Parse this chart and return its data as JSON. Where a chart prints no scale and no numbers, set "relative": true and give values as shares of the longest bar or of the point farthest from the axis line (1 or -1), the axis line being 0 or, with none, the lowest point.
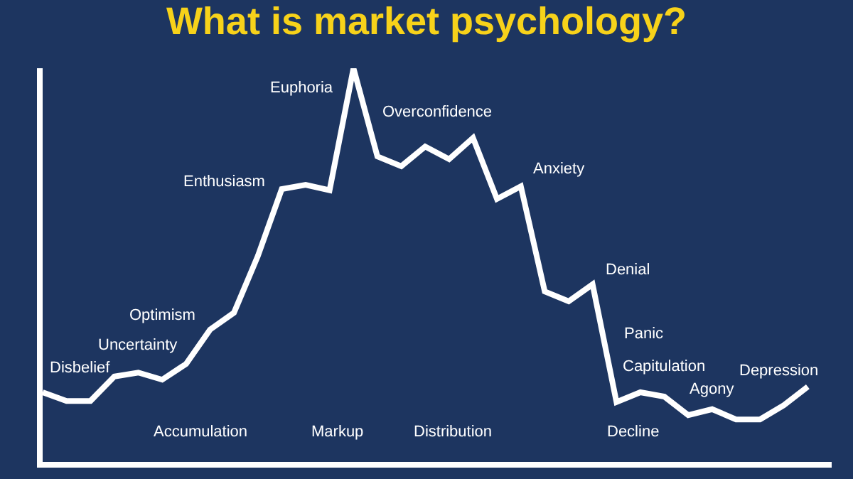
{
  "chart_data": {
    "type": "line",
    "title": "What is market psychology?",
    "relative": true,
    "marker": "none",
    "line_style": "solid",
    "categories": [
      null,
      null,
      null,
      null,
      null,
      null,
      null,
      null,
      null,
      null,
      null,
      null,
      null,
      null,
      null,
      null,
      null,
      null,
      null,
      null,
      null,
      null,
      null,
      null,
      null,
      null,
      null,
      null,
      null,
      null,
      null,
      null,
      null
    ],
    "series": [
      {
        "color": "#ffffff",
        "values": [
          0.177,
          0.155,
          0.155,
          0.217,
          0.227,
          0.209,
          0.249,
          0.336,
          0.379,
          0.523,
          0.693,
          0.704,
          0.69,
          1.0,
          0.776,
          0.751,
          0.801,
          0.769,
          0.823,
          0.668,
          0.7,
          0.433,
          0.408,
          0.451,
          0.152,
          0.177,
          0.166,
          0.119,
          0.134,
          0.108,
          0.108,
          0.144,
          0.191
        ]
      }
    ],
    "annotations": [
      "Disbelief",
      "Uncertainty",
      "Optimism",
      "Enthusiasm",
      "Euphoria",
      "Overconfidence",
      "Anxiety",
      "Denial",
      "Panic",
      "Capitulation",
      "Agony",
      "Depression",
      "Accumulation",
      "Markup",
      "Distribution",
      "Decline"
    ]
  }
}
